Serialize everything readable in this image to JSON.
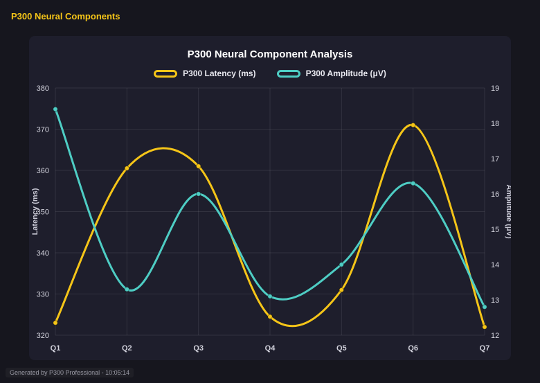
{
  "header": {
    "title": "P300 Neural Components"
  },
  "footer": {
    "text": "Generated by P300 Professional - 10:05:14"
  },
  "colors": {
    "background": "#16161e",
    "panel": "#1e1e2c",
    "yellow": "#f5c518",
    "teal": "#4ecdc4",
    "text": "#ffffff",
    "muted": "#9a9aa5"
  },
  "chart_data": {
    "type": "line",
    "title": "P300 Neural Component Analysis",
    "categories": [
      "Q1",
      "Q2",
      "Q3",
      "Q4",
      "Q5",
      "Q6",
      "Q7"
    ],
    "series": [
      {
        "name": "P300 Latency (ms)",
        "axis": "left",
        "color": "#f5c518",
        "values": [
          323,
          360.5,
          361,
          324.5,
          331,
          371,
          322
        ]
      },
      {
        "name": "P300 Amplitude (μV)",
        "axis": "right",
        "color": "#4ecdc4",
        "values": [
          18.4,
          13.3,
          16.0,
          13.1,
          14.0,
          16.3,
          12.8
        ]
      }
    ],
    "left_axis": {
      "label": "Latency (ms)",
      "min": 320,
      "max": 380,
      "ticks": [
        320,
        330,
        340,
        350,
        360,
        370,
        380
      ]
    },
    "right_axis": {
      "label": "Amplitude (μV)",
      "min": 12,
      "max": 19,
      "ticks": [
        12,
        13,
        14,
        15,
        16,
        17,
        18,
        19
      ]
    },
    "grid": true,
    "legend_position": "top",
    "smooth": true
  }
}
